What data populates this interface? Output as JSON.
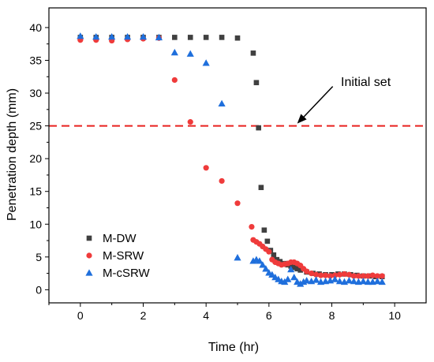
{
  "chart_data": {
    "type": "scatter",
    "title": "",
    "xlabel": "Time (hr)",
    "ylabel": "Penetration depth (mm)",
    "xlim": [
      -1,
      11
    ],
    "ylim": [
      -2,
      43
    ],
    "xticks": [
      0,
      2,
      4,
      6,
      8,
      10
    ],
    "yticks": [
      0,
      5,
      10,
      15,
      20,
      25,
      30,
      35,
      40
    ],
    "x_tick_labels": [
      "0",
      "2",
      "4",
      "6",
      "8",
      "10"
    ],
    "y_tick_labels": [
      "0",
      "5",
      "10",
      "15",
      "20",
      "25",
      "30",
      "35",
      "40"
    ],
    "grid": false,
    "legend_position": "lower-left",
    "reference_line": {
      "y": 25,
      "color": "#e8221f",
      "style": "dashed"
    },
    "annotation": {
      "text": "Initial set",
      "arrow_to": [
        6.9,
        25
      ]
    },
    "series": [
      {
        "name": "M-DW",
        "marker": "square",
        "color": "#404040",
        "x": [
          0,
          0.5,
          1,
          1.5,
          2,
          2.5,
          3,
          3.5,
          4,
          4.5,
          5,
          5.5,
          5.6,
          5.67,
          5.75,
          5.85,
          5.95,
          6.05,
          6.15,
          6.25,
          6.35,
          6.5,
          6.6,
          6.7,
          6.8,
          6.9,
          7.0,
          7.2,
          7.4,
          7.6,
          7.8,
          8.0,
          8.2,
          8.4,
          8.6,
          8.8,
          9.0,
          9.2,
          9.4,
          9.6
        ],
        "y": [
          38.5,
          38.5,
          38.5,
          38.5,
          38.5,
          38.5,
          38.5,
          38.5,
          38.5,
          38.5,
          38.4,
          36.1,
          31.6,
          24.7,
          15.6,
          9.1,
          7.4,
          6.0,
          5.3,
          4.6,
          4.3,
          4.0,
          3.8,
          3.6,
          3.4,
          3.2,
          3.0,
          2.7,
          2.5,
          2.4,
          2.3,
          2.3,
          2.4,
          2.4,
          2.3,
          2.2,
          2.1,
          2.1,
          2.0,
          2.0
        ]
      },
      {
        "name": "M-SRW",
        "marker": "circle",
        "color": "#ef3b3b",
        "x": [
          0,
          0.5,
          1,
          1.5,
          2,
          2.5,
          3,
          3.5,
          4,
          4.5,
          5,
          5.45,
          5.5,
          5.6,
          5.7,
          5.8,
          5.9,
          6.0,
          6.1,
          6.2,
          6.3,
          6.4,
          6.5,
          6.6,
          6.7,
          6.8,
          6.9,
          7.0,
          7.1,
          7.2,
          7.35,
          7.5,
          7.65,
          7.8,
          7.95,
          8.1,
          8.25,
          8.4,
          8.55,
          8.7,
          8.85,
          9.0,
          9.15,
          9.3,
          9.45,
          9.6
        ],
        "y": [
          38.1,
          38.1,
          38.0,
          38.2,
          38.3,
          38.4,
          32.0,
          25.6,
          18.6,
          16.6,
          13.2,
          9.6,
          7.6,
          7.3,
          7.0,
          6.6,
          6.2,
          5.8,
          4.6,
          4.2,
          4.0,
          3.8,
          3.9,
          4.0,
          4.2,
          4.2,
          4.0,
          3.7,
          3.2,
          2.8,
          2.5,
          2.3,
          2.2,
          2.2,
          2.1,
          2.2,
          2.3,
          2.4,
          2.3,
          2.1,
          2.1,
          2.1,
          2.1,
          2.2,
          2.1,
          2.1
        ]
      },
      {
        "name": "M-cSRW",
        "marker": "triangle",
        "color": "#1f6fdc",
        "x": [
          0,
          0.5,
          1,
          1.5,
          2,
          2.5,
          3,
          3.5,
          4,
          4.5,
          5,
          5.5,
          5.6,
          5.7,
          5.8,
          5.9,
          6.0,
          6.1,
          6.2,
          6.3,
          6.4,
          6.5,
          6.6,
          6.7,
          6.8,
          6.9,
          7.0,
          7.1,
          7.2,
          7.35,
          7.5,
          7.65,
          7.8,
          7.95,
          8.1,
          8.25,
          8.4,
          8.55,
          8.7,
          8.85,
          9.0,
          9.15,
          9.3,
          9.45,
          9.6
        ],
        "y": [
          38.7,
          38.6,
          38.6,
          38.6,
          38.6,
          38.5,
          36.2,
          36.0,
          34.6,
          28.4,
          4.9,
          4.4,
          4.6,
          4.4,
          3.8,
          3.2,
          2.6,
          2.3,
          1.9,
          1.6,
          1.3,
          1.2,
          1.6,
          3.1,
          1.9,
          1.2,
          0.9,
          1.2,
          1.4,
          1.3,
          1.5,
          1.2,
          1.3,
          1.4,
          1.6,
          1.3,
          1.2,
          1.4,
          1.3,
          1.2,
          1.3,
          1.2,
          1.2,
          1.3,
          1.2
        ]
      }
    ]
  }
}
